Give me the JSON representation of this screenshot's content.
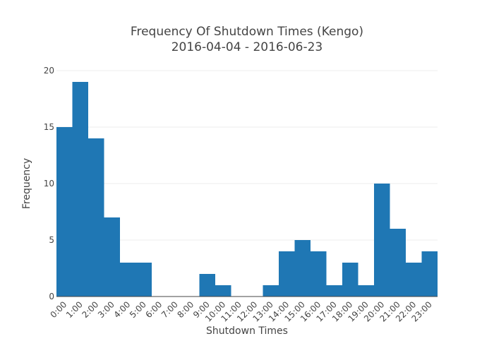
{
  "chart_data": {
    "type": "bar",
    "title": "Frequency Of Shutdown Times (Kengo)",
    "subtitle": "2016-04-04 - 2016-06-23",
    "xlabel": "Shutdown Times",
    "ylabel": "Frequency",
    "categories": [
      "0:00",
      "1:00",
      "2:00",
      "3:00",
      "4:00",
      "5:00",
      "6:00",
      "7:00",
      "8:00",
      "9:00",
      "10:00",
      "11:00",
      "12:00",
      "13:00",
      "14:00",
      "15:00",
      "16:00",
      "17:00",
      "18:00",
      "19:00",
      "20:00",
      "21:00",
      "22:00",
      "23:00"
    ],
    "values": [
      15,
      19,
      14,
      7,
      3,
      3,
      0,
      0,
      0,
      2,
      1,
      0,
      0,
      1,
      4,
      5,
      4,
      1,
      3,
      1,
      10,
      6,
      3,
      4
    ],
    "ylim": [
      0,
      20
    ],
    "yticks": [
      0,
      5,
      10,
      15,
      20
    ],
    "bar_color": "#1f77b4",
    "grid": true,
    "legend": "none"
  }
}
